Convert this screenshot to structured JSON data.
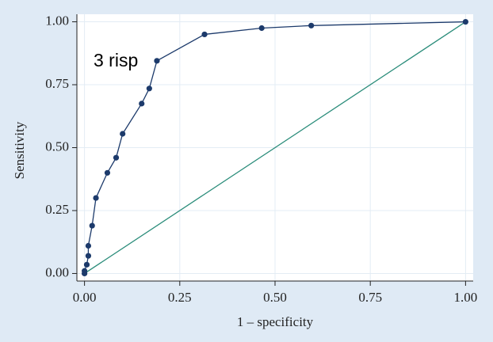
{
  "chart_data": {
    "type": "line",
    "annotation": "3 risp",
    "x_label": "1 – specificity",
    "y_label": "Sensitivity",
    "x": [
      0,
      0,
      0.006,
      0.01,
      0.01,
      0.02,
      0.03,
      0.06,
      0.083,
      0.1,
      0.15,
      0.17,
      0.19,
      0.315,
      0.465,
      0.595,
      1
    ],
    "series": [
      {
        "color": "#1c3a6b",
        "values": [
          0,
          0.01,
          0.035,
          0.07,
          0.11,
          0.19,
          0.3,
          0.4,
          0.46,
          0.555,
          0.675,
          0.735,
          0.845,
          0.95,
          0.975,
          0.985,
          1
        ]
      }
    ],
    "diagonal": {
      "x": [
        0,
        1
      ],
      "values": [
        0,
        1
      ],
      "color": "#2a8c7a"
    },
    "xlim": [
      -0.02,
      1.02
    ],
    "ylim": [
      -0.03,
      1.03
    ],
    "xticks": [
      {
        "value": 0,
        "label": "0.00"
      },
      {
        "value": 0.25,
        "label": "0.25"
      },
      {
        "value": 0.5,
        "label": "0.50"
      },
      {
        "value": 0.75,
        "label": "0.75"
      },
      {
        "value": 1,
        "label": "1.00"
      }
    ],
    "yticks": [
      {
        "value": 0,
        "label": "0.00"
      },
      {
        "value": 0.25,
        "label": "0.25"
      },
      {
        "value": 0.5,
        "label": "0.50"
      },
      {
        "value": 0.75,
        "label": "0.75"
      },
      {
        "value": 1,
        "label": "1.00"
      }
    ],
    "grid": true
  }
}
